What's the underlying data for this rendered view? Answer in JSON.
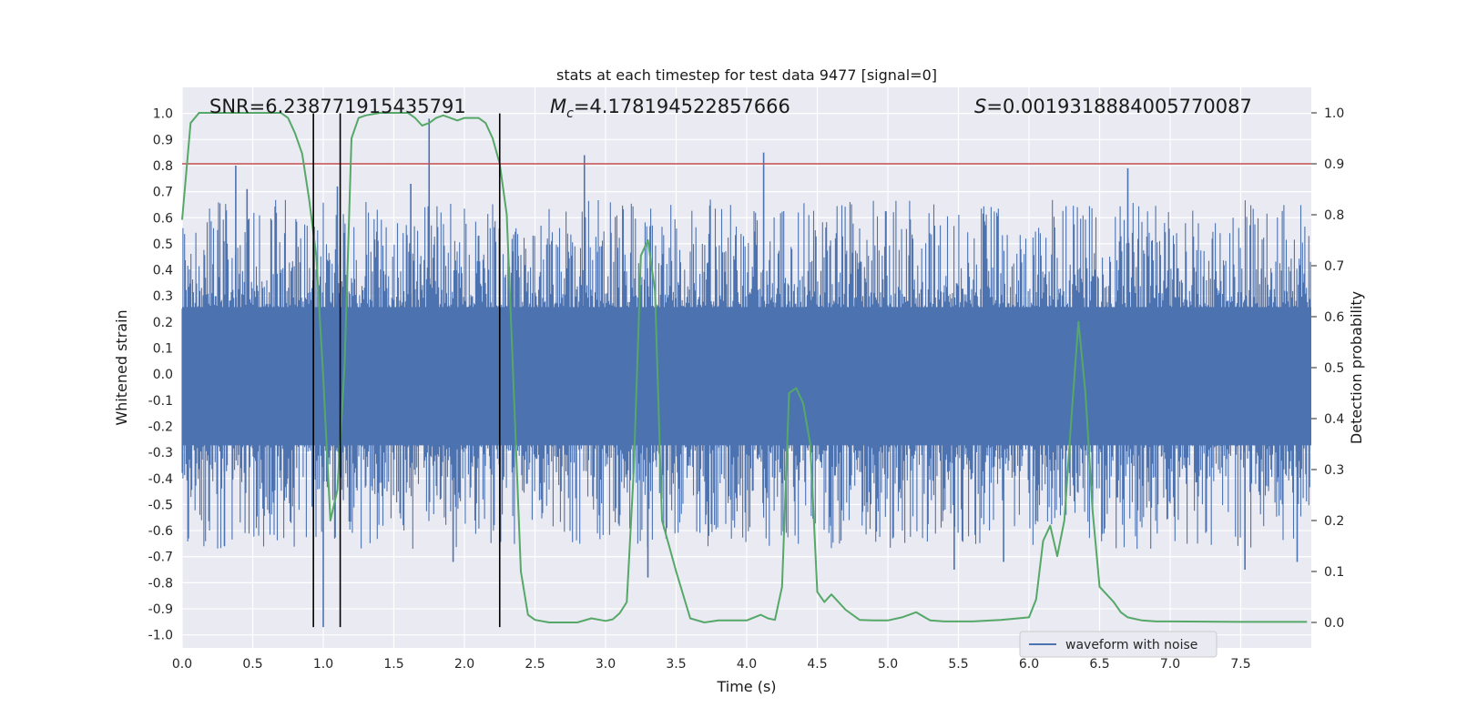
{
  "chart_data": {
    "type": "line",
    "title": "stats at each timestep for test data 9477 [signal=0]",
    "xlabel": "Time (s)",
    "ylabel": "Whitened strain",
    "ylabel_right": "Detection probability",
    "xlim": [
      0.0,
      8.0
    ],
    "ylim": [
      -1.05,
      1.1
    ],
    "ylim_right": [
      -0.05,
      1.05
    ],
    "x_ticks": [
      "0.0",
      "0.5",
      "1.0",
      "1.5",
      "2.0",
      "2.5",
      "3.0",
      "3.5",
      "4.0",
      "4.5",
      "5.0",
      "5.5",
      "6.0",
      "6.5",
      "7.0",
      "7.5"
    ],
    "x_tick_values": [
      0,
      0.5,
      1,
      1.5,
      2,
      2.5,
      3,
      3.5,
      4,
      4.5,
      5,
      5.5,
      6,
      6.5,
      7,
      7.5
    ],
    "y_ticks": [
      "1.0",
      "0.9",
      "0.8",
      "0.7",
      "0.6",
      "0.5",
      "0.4",
      "0.3",
      "0.2",
      "0.1",
      "0.0",
      "-0.1",
      "-0.2",
      "-0.3",
      "-0.4",
      "-0.5",
      "-0.6",
      "-0.7",
      "-0.8",
      "-0.9",
      "-1.0"
    ],
    "y_tick_values": [
      1,
      0.9,
      0.8,
      0.7,
      0.6,
      0.5,
      0.4,
      0.3,
      0.2,
      0.1,
      0,
      -0.1,
      -0.2,
      -0.3,
      -0.4,
      -0.5,
      -0.6,
      -0.7,
      -0.8,
      -0.9,
      -1
    ],
    "y_ticks_right": [
      "1.0",
      "0.9",
      "0.8",
      "0.7",
      "0.6",
      "0.5",
      "0.4",
      "0.3",
      "0.2",
      "0.1",
      "0.0"
    ],
    "y_tick_values_right": [
      1,
      0.9,
      0.8,
      0.7,
      0.6,
      0.5,
      0.4,
      0.3,
      0.2,
      0.1,
      0
    ],
    "grid": true,
    "legend": {
      "placement": "bottom-right",
      "entries": [
        "waveform with noise"
      ]
    },
    "annotations": {
      "snr": "SNR=6.238771915435791",
      "mc_symbol": "M",
      "mc_subscript": "c",
      "mc_value": "=4.178194522857666",
      "s_symbol": "S",
      "s_value": "=0.0019318884005770087"
    },
    "threshold": 0.9,
    "vertical_lines": [
      0.93,
      1.12,
      2.25
    ],
    "waveform": {
      "name": "waveform with noise",
      "color": "#4c72b0",
      "core_envelope": [
        -0.35,
        0.33
      ],
      "spikes": [
        {
          "t": 0.38,
          "v": 0.8
        },
        {
          "t": 0.46,
          "v": 0.71
        },
        {
          "t": 1.0,
          "v": -0.97
        },
        {
          "t": 1.1,
          "v": 0.72
        },
        {
          "t": 1.75,
          "v": 0.98
        },
        {
          "t": 1.62,
          "v": 0.73
        },
        {
          "t": 2.85,
          "v": 0.84
        },
        {
          "t": 3.3,
          "v": -0.78
        },
        {
          "t": 4.12,
          "v": 0.85
        },
        {
          "t": 5.47,
          "v": -0.75
        },
        {
          "t": 6.7,
          "v": 0.79
        },
        {
          "t": 7.53,
          "v": -0.75
        },
        {
          "t": 7.9,
          "v": -0.72
        },
        {
          "t": 0.3,
          "v": -0.66
        },
        {
          "t": 1.92,
          "v": -0.72
        },
        {
          "t": 5.82,
          "v": -0.72
        }
      ]
    },
    "probability": {
      "color": "#55a868",
      "t": [
        0.0,
        0.06,
        0.12,
        0.2,
        0.3,
        0.4,
        0.5,
        0.6,
        0.7,
        0.75,
        0.8,
        0.85,
        0.9,
        0.95,
        1.0,
        1.05,
        1.1,
        1.15,
        1.2,
        1.25,
        1.3,
        1.4,
        1.5,
        1.6,
        1.65,
        1.7,
        1.75,
        1.8,
        1.85,
        1.9,
        1.95,
        2.0,
        2.1,
        2.15,
        2.2,
        2.25,
        2.3,
        2.35,
        2.4,
        2.45,
        2.5,
        2.6,
        2.8,
        2.9,
        3.0,
        3.05,
        3.1,
        3.15,
        3.2,
        3.25,
        3.3,
        3.35,
        3.4,
        3.45,
        3.5,
        3.6,
        3.7,
        3.8,
        4.0,
        4.1,
        4.15,
        4.2,
        4.25,
        4.3,
        4.35,
        4.4,
        4.45,
        4.5,
        4.55,
        4.6,
        4.65,
        4.7,
        4.8,
        4.9,
        5.0,
        5.1,
        5.2,
        5.3,
        5.4,
        5.6,
        5.8,
        6.0,
        6.05,
        6.1,
        6.15,
        6.2,
        6.25,
        6.3,
        6.35,
        6.4,
        6.45,
        6.5,
        6.6,
        6.65,
        6.7,
        6.8,
        6.9,
        7.0,
        7.5,
        7.97
      ],
      "p": [
        0.79,
        0.98,
        1.0,
        1.0,
        1.0,
        1.0,
        1.0,
        1.0,
        1.0,
        0.99,
        0.96,
        0.92,
        0.83,
        0.72,
        0.48,
        0.2,
        0.26,
        0.5,
        0.95,
        0.99,
        0.995,
        1.0,
        1.0,
        1.0,
        0.99,
        0.975,
        0.98,
        0.99,
        0.995,
        0.99,
        0.985,
        0.99,
        0.99,
        0.98,
        0.95,
        0.9,
        0.8,
        0.45,
        0.1,
        0.015,
        0.005,
        0.0,
        0.0,
        0.008,
        0.003,
        0.006,
        0.018,
        0.04,
        0.3,
        0.72,
        0.75,
        0.65,
        0.2,
        0.15,
        0.1,
        0.008,
        0.0,
        0.004,
        0.004,
        0.015,
        0.008,
        0.005,
        0.07,
        0.45,
        0.46,
        0.43,
        0.35,
        0.06,
        0.04,
        0.055,
        0.04,
        0.025,
        0.005,
        0.004,
        0.004,
        0.01,
        0.02,
        0.004,
        0.002,
        0.002,
        0.005,
        0.01,
        0.045,
        0.16,
        0.19,
        0.13,
        0.2,
        0.4,
        0.59,
        0.45,
        0.22,
        0.07,
        0.04,
        0.02,
        0.01,
        0.004,
        0.002,
        0.002,
        0.001,
        0.001
      ]
    }
  }
}
